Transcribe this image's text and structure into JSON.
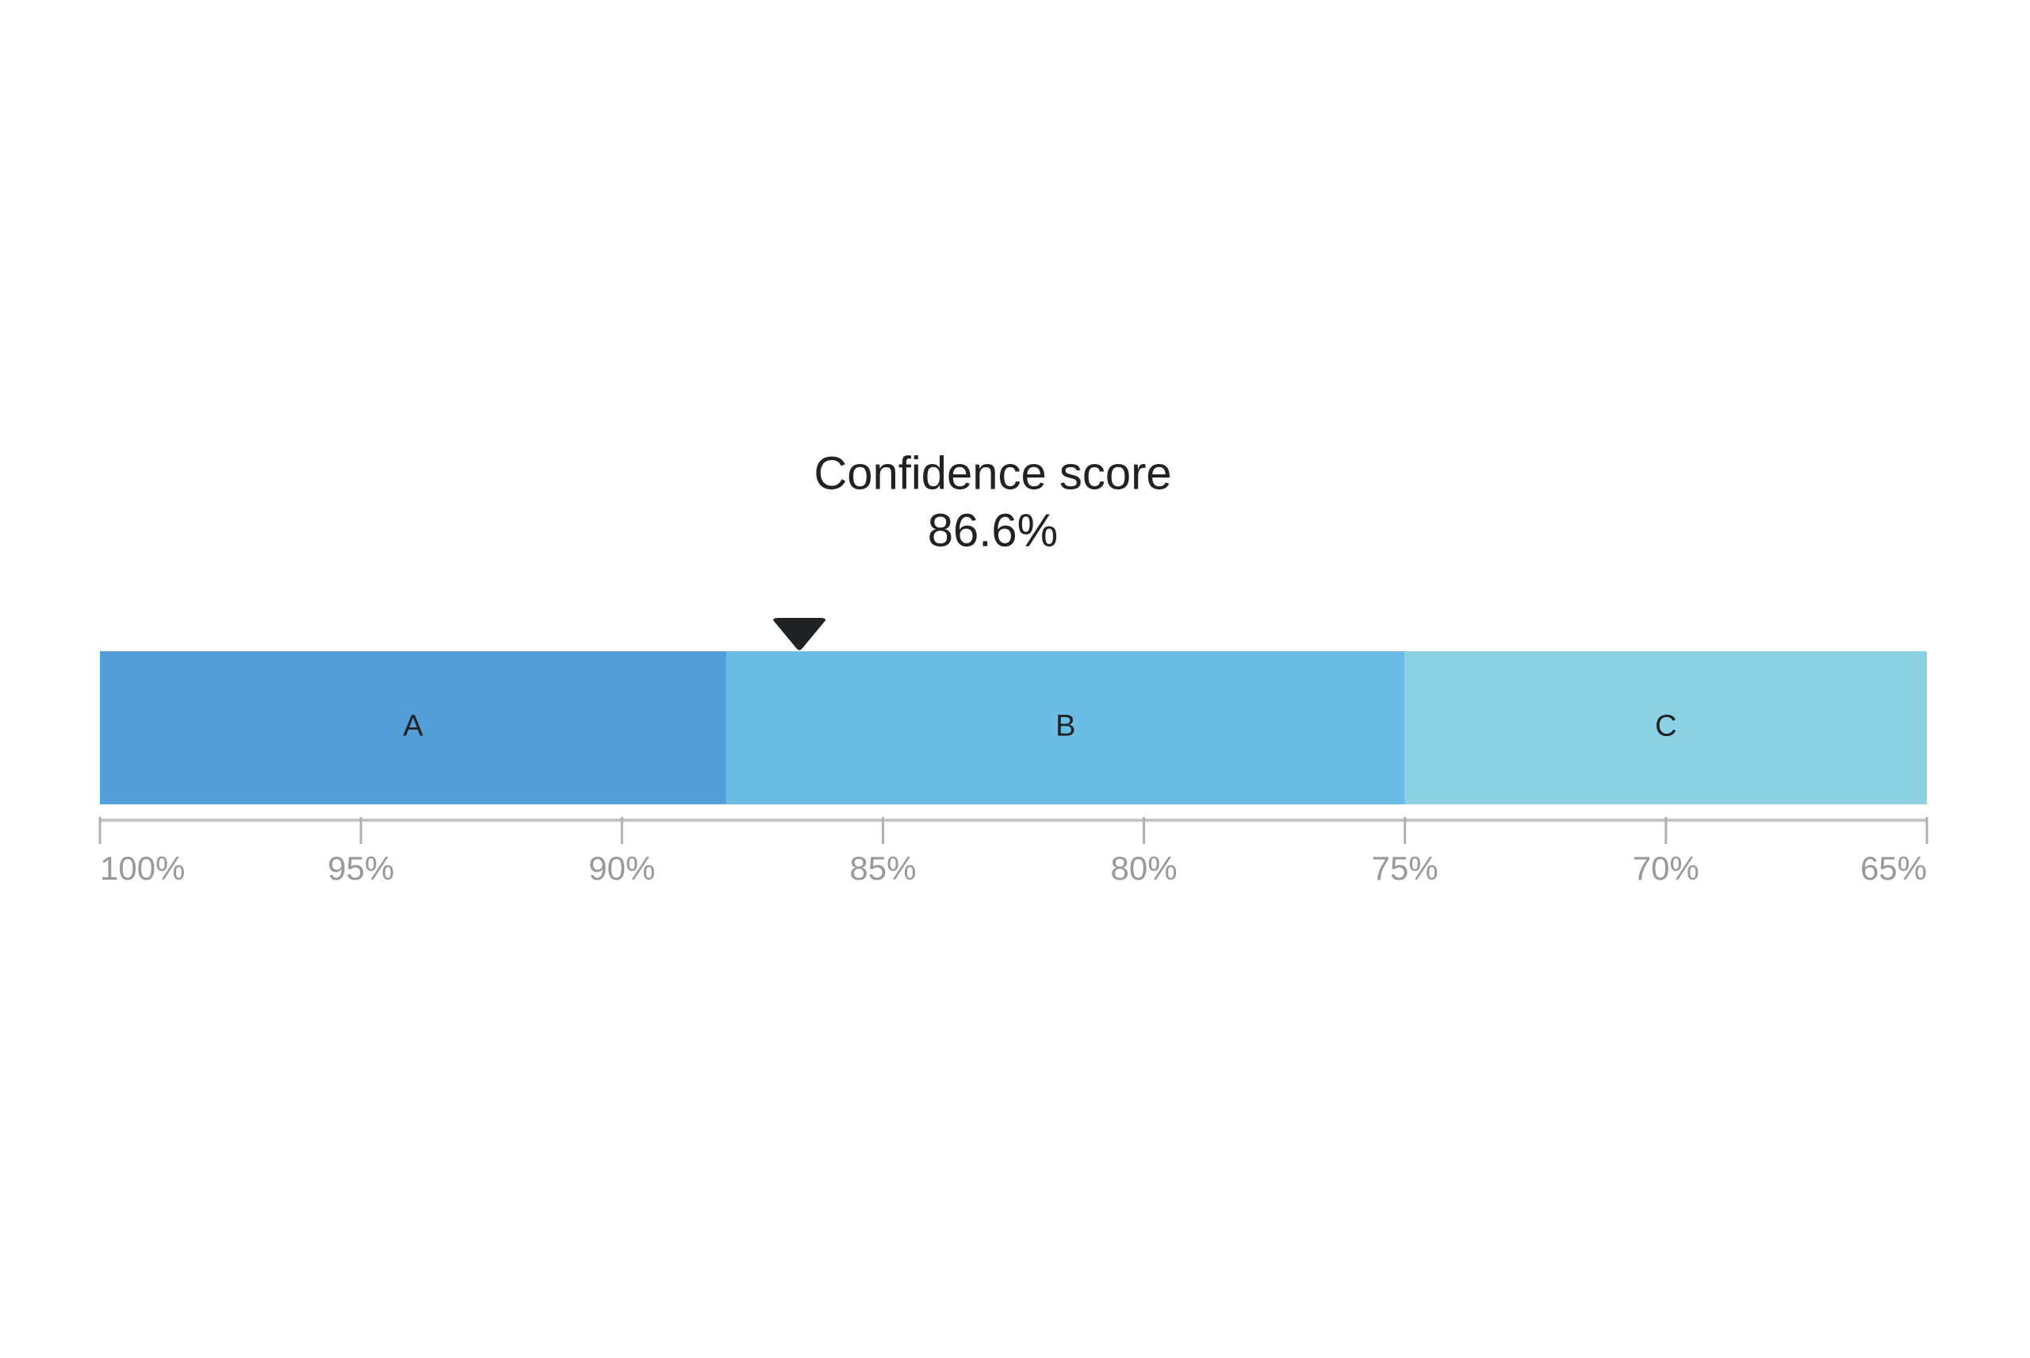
{
  "chart_data": {
    "type": "bullet",
    "title": "Confidence score",
    "value": 86.6,
    "value_label": "86.6%",
    "marker_color": "#202326",
    "bands": [
      {
        "name": "A",
        "from": 100,
        "to": 88,
        "color": "#549fd7"
      },
      {
        "name": "B",
        "from": 88,
        "to": 75,
        "color": "#6cbde5"
      },
      {
        "name": "C",
        "from": 75,
        "to": 65,
        "color": "#8bd0e3"
      }
    ],
    "xlim": [
      100,
      65
    ],
    "xticks": [
      {
        "value": 100,
        "label": "100%"
      },
      {
        "value": 95,
        "label": "95%"
      },
      {
        "value": 90,
        "label": "90%"
      },
      {
        "value": 85,
        "label": "85%"
      },
      {
        "value": 80,
        "label": "80%"
      },
      {
        "value": 75,
        "label": "75%"
      },
      {
        "value": 70,
        "label": "70%"
      },
      {
        "value": 65,
        "label": "65%"
      }
    ]
  }
}
